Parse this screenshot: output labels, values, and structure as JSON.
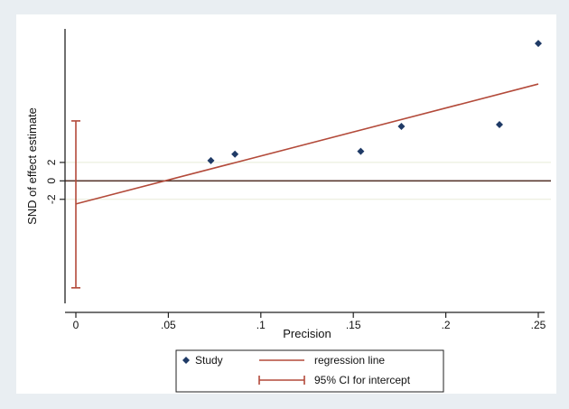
{
  "chart_data": {
    "type": "scatter",
    "title": "",
    "xlabel": "Precision",
    "ylabel": "SND of effect estimate",
    "x_ticks": [
      {
        "value": 0,
        "label": "0"
      },
      {
        "value": 0.05,
        "label": ".05"
      },
      {
        "value": 0.1,
        "label": ".1"
      },
      {
        "value": 0.15,
        "label": ".15"
      },
      {
        "value": 0.2,
        "label": ".2"
      },
      {
        "value": 0.25,
        "label": ".25"
      }
    ],
    "y_ticks": [
      {
        "value": 2,
        "label": "2"
      },
      {
        "value": 0,
        "label": "0"
      },
      {
        "value": -2,
        "label": "-2"
      }
    ],
    "xlim": [
      0,
      0.25
    ],
    "ylim": [
      -12.5,
      15.5
    ],
    "grid": "horizontal at y ticks",
    "series": [
      {
        "name": "Study",
        "kind": "points",
        "marker": "diamond",
        "color": "#1f3a66",
        "points": [
          {
            "x": 0.073,
            "y": 2.2
          },
          {
            "x": 0.086,
            "y": 2.9
          },
          {
            "x": 0.154,
            "y": 3.2
          },
          {
            "x": 0.176,
            "y": 5.9
          },
          {
            "x": 0.229,
            "y": 6.1
          },
          {
            "x": 0.25,
            "y": 14.9
          }
        ]
      },
      {
        "name": "regression line",
        "kind": "line",
        "color": "#b34a3a",
        "intercept": -2.5,
        "slope": 52,
        "x_range": [
          0,
          0.25
        ]
      },
      {
        "name": "95% CI for intercept",
        "kind": "errorbar",
        "color": "#b34a3a",
        "x": 0,
        "low": -11.6,
        "high": 6.5
      }
    ],
    "legend": {
      "placement": "bottom",
      "entries": [
        {
          "label": "Study",
          "symbol": "diamond"
        },
        {
          "label": "regression line",
          "symbol": "line"
        },
        {
          "label": "95% CI for intercept",
          "symbol": "errorbar"
        }
      ]
    },
    "colors": {
      "background": "#e9eef2",
      "plot_background": "#ffffff",
      "axis": "#222222",
      "zero_line": "#5a3a30",
      "gridline": "#e8ecd8",
      "marker": "#1f3a66",
      "fit": "#b34a3a"
    }
  }
}
